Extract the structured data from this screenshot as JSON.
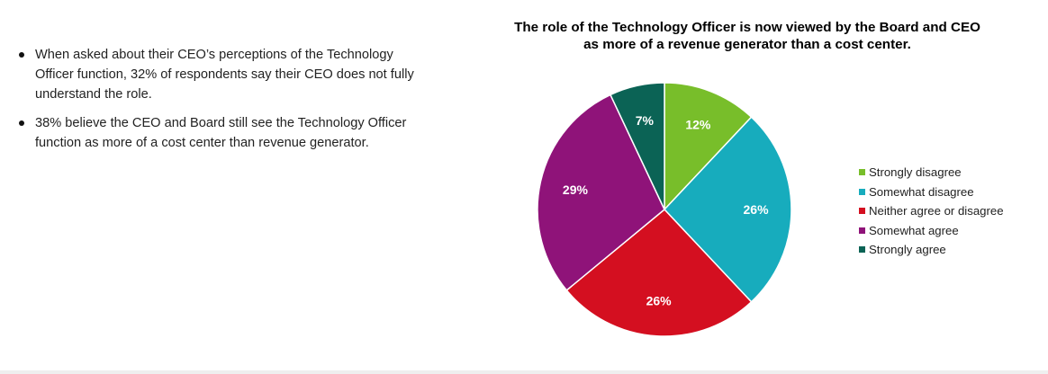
{
  "bullets": [
    {
      "text": "When asked about their CEO’s perceptions of the Technology Officer function, 32% of respondents say their CEO does not fully understand the role."
    },
    {
      "text": "38% believe the CEO and Board still see the Technology Officer function as more of a cost center than revenue generator."
    }
  ],
  "chart_data": {
    "type": "pie",
    "title": "The role of the Technology Officer is now viewed by the Board and CEO as more of a revenue generator than a cost center.",
    "start_angle_deg": 0,
    "direction": "clockwise",
    "legend_position": "right",
    "slices": [
      {
        "label": "Strongly disagree",
        "value": 12,
        "display": "12%",
        "color": "#78be2a"
      },
      {
        "label": "Somewhat disagree",
        "value": 26,
        "display": "26%",
        "color": "#17acbd"
      },
      {
        "label": "Neither agree or disagree",
        "value": 26,
        "display": "26%",
        "color": "#d40f20"
      },
      {
        "label": "Somewhat agree",
        "value": 29,
        "display": "29%",
        "color": "#8f1379"
      },
      {
        "label": "Strongly agree",
        "value": 7,
        "display": "7%",
        "color": "#0b6355"
      }
    ]
  }
}
